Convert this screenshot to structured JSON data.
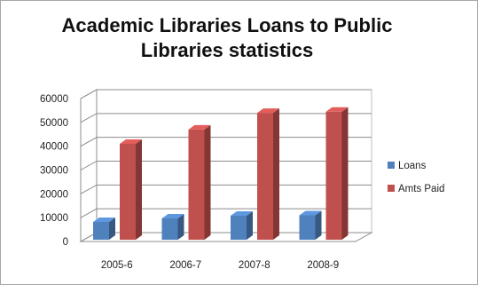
{
  "chart_data": {
    "type": "bar",
    "title_line1": "Academic Libraries Loans to Public",
    "title_line2": "Libraries statistics",
    "categories": [
      "2005-6",
      "2006-7",
      "2007-8",
      "2008-9"
    ],
    "series": [
      {
        "name": "Loans",
        "values": [
          8200,
          9700,
          10800,
          11000
        ],
        "color": "#4f81bd"
      },
      {
        "name": "Amts Paid",
        "values": [
          41000,
          47000,
          54000,
          54500
        ],
        "color": "#c0504d"
      }
    ],
    "yticks": [
      "0",
      "10000",
      "20000",
      "30000",
      "40000",
      "50000",
      "60000"
    ],
    "ylim": [
      0,
      60000
    ],
    "grid": true,
    "legend_position": "right",
    "style": "3d-column"
  }
}
